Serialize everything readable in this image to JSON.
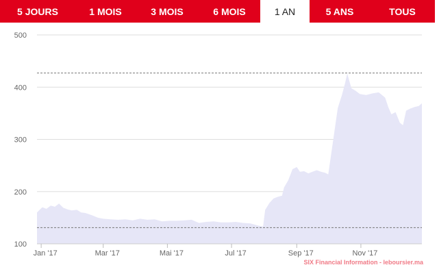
{
  "range_tabs": [
    {
      "label": "5 JOURS",
      "active": false
    },
    {
      "label": "1 MOIS",
      "active": false
    },
    {
      "label": "3 MOIS",
      "active": false
    },
    {
      "label": "6 MOIS",
      "active": false
    },
    {
      "label": "1 AN",
      "active": true
    },
    {
      "label": "5 ANS",
      "active": false
    },
    {
      "label": "TOUS",
      "active": false
    }
  ],
  "credit": "SIX Financial Information - leboursier.ma",
  "colors": {
    "accent": "#e0001b",
    "area_fill": "#e6e6f7",
    "grid": "#dddddd",
    "reference_line": "#777777"
  },
  "chart_data": {
    "type": "area",
    "title": "",
    "xlabel": "",
    "ylabel": "",
    "ylim": [
      100,
      500
    ],
    "yticks": [
      100,
      200,
      300,
      400,
      500
    ],
    "grid": true,
    "x_ticks": [
      {
        "label": "Jan '17",
        "date": "2017-01-01"
      },
      {
        "label": "Mar '17",
        "date": "2017-03-01"
      },
      {
        "label": "Mai '17",
        "date": "2017-05-01"
      },
      {
        "label": "Jul '17",
        "date": "2017-07-01"
      },
      {
        "label": "Sep '17",
        "date": "2017-09-01"
      },
      {
        "label": "Nov '17",
        "date": "2017-11-01"
      }
    ],
    "xlim": [
      "2016-12-28",
      "2017-12-29"
    ],
    "reference_lines": [
      427,
      131
    ],
    "series": [
      {
        "values": [
          [
            "2016-12-28",
            160
          ],
          [
            "2017-01-02",
            170
          ],
          [
            "2017-01-06",
            167
          ],
          [
            "2017-01-10",
            173
          ],
          [
            "2017-01-14",
            171
          ],
          [
            "2017-01-18",
            177
          ],
          [
            "2017-01-22",
            169
          ],
          [
            "2017-01-26",
            166
          ],
          [
            "2017-01-30",
            164
          ],
          [
            "2017-02-04",
            165
          ],
          [
            "2017-02-08",
            160
          ],
          [
            "2017-02-12",
            159
          ],
          [
            "2017-02-18",
            155
          ],
          [
            "2017-02-24",
            150
          ],
          [
            "2017-03-01",
            148
          ],
          [
            "2017-03-08",
            147
          ],
          [
            "2017-03-15",
            146
          ],
          [
            "2017-03-22",
            147
          ],
          [
            "2017-03-29",
            145
          ],
          [
            "2017-04-05",
            148
          ],
          [
            "2017-04-12",
            146
          ],
          [
            "2017-04-19",
            147
          ],
          [
            "2017-04-26",
            143
          ],
          [
            "2017-05-03",
            144
          ],
          [
            "2017-05-10",
            144
          ],
          [
            "2017-05-17",
            145
          ],
          [
            "2017-05-24",
            146
          ],
          [
            "2017-05-31",
            140
          ],
          [
            "2017-06-07",
            142
          ],
          [
            "2017-06-14",
            143
          ],
          [
            "2017-06-21",
            141
          ],
          [
            "2017-06-28",
            141
          ],
          [
            "2017-07-05",
            142
          ],
          [
            "2017-07-12",
            140
          ],
          [
            "2017-07-19",
            139
          ],
          [
            "2017-07-26",
            135
          ],
          [
            "2017-07-31",
            133
          ],
          [
            "2017-08-02",
            165
          ],
          [
            "2017-08-06",
            178
          ],
          [
            "2017-08-10",
            187
          ],
          [
            "2017-08-14",
            190
          ],
          [
            "2017-08-18",
            192
          ],
          [
            "2017-08-20",
            208
          ],
          [
            "2017-08-24",
            222
          ],
          [
            "2017-08-28",
            243
          ],
          [
            "2017-09-01",
            247
          ],
          [
            "2017-09-04",
            238
          ],
          [
            "2017-09-08",
            239
          ],
          [
            "2017-09-12",
            235
          ],
          [
            "2017-09-16",
            238
          ],
          [
            "2017-09-20",
            241
          ],
          [
            "2017-09-24",
            238
          ],
          [
            "2017-09-28",
            236
          ],
          [
            "2017-10-01",
            233
          ],
          [
            "2017-10-04",
            275
          ],
          [
            "2017-10-07",
            318
          ],
          [
            "2017-10-10",
            360
          ],
          [
            "2017-10-14",
            385
          ],
          [
            "2017-10-17",
            408
          ],
          [
            "2017-10-19",
            426
          ],
          [
            "2017-10-23",
            398
          ],
          [
            "2017-10-27",
            393
          ],
          [
            "2017-10-31",
            387
          ],
          [
            "2017-11-06",
            385
          ],
          [
            "2017-11-12",
            388
          ],
          [
            "2017-11-18",
            390
          ],
          [
            "2017-11-24",
            380
          ],
          [
            "2017-11-27",
            362
          ],
          [
            "2017-11-30",
            348
          ],
          [
            "2017-12-04",
            352
          ],
          [
            "2017-12-08",
            332
          ],
          [
            "2017-12-11",
            327
          ],
          [
            "2017-12-14",
            355
          ],
          [
            "2017-12-18",
            359
          ],
          [
            "2017-12-22",
            362
          ],
          [
            "2017-12-26",
            364
          ],
          [
            "2017-12-29",
            369
          ]
        ]
      }
    ]
  }
}
